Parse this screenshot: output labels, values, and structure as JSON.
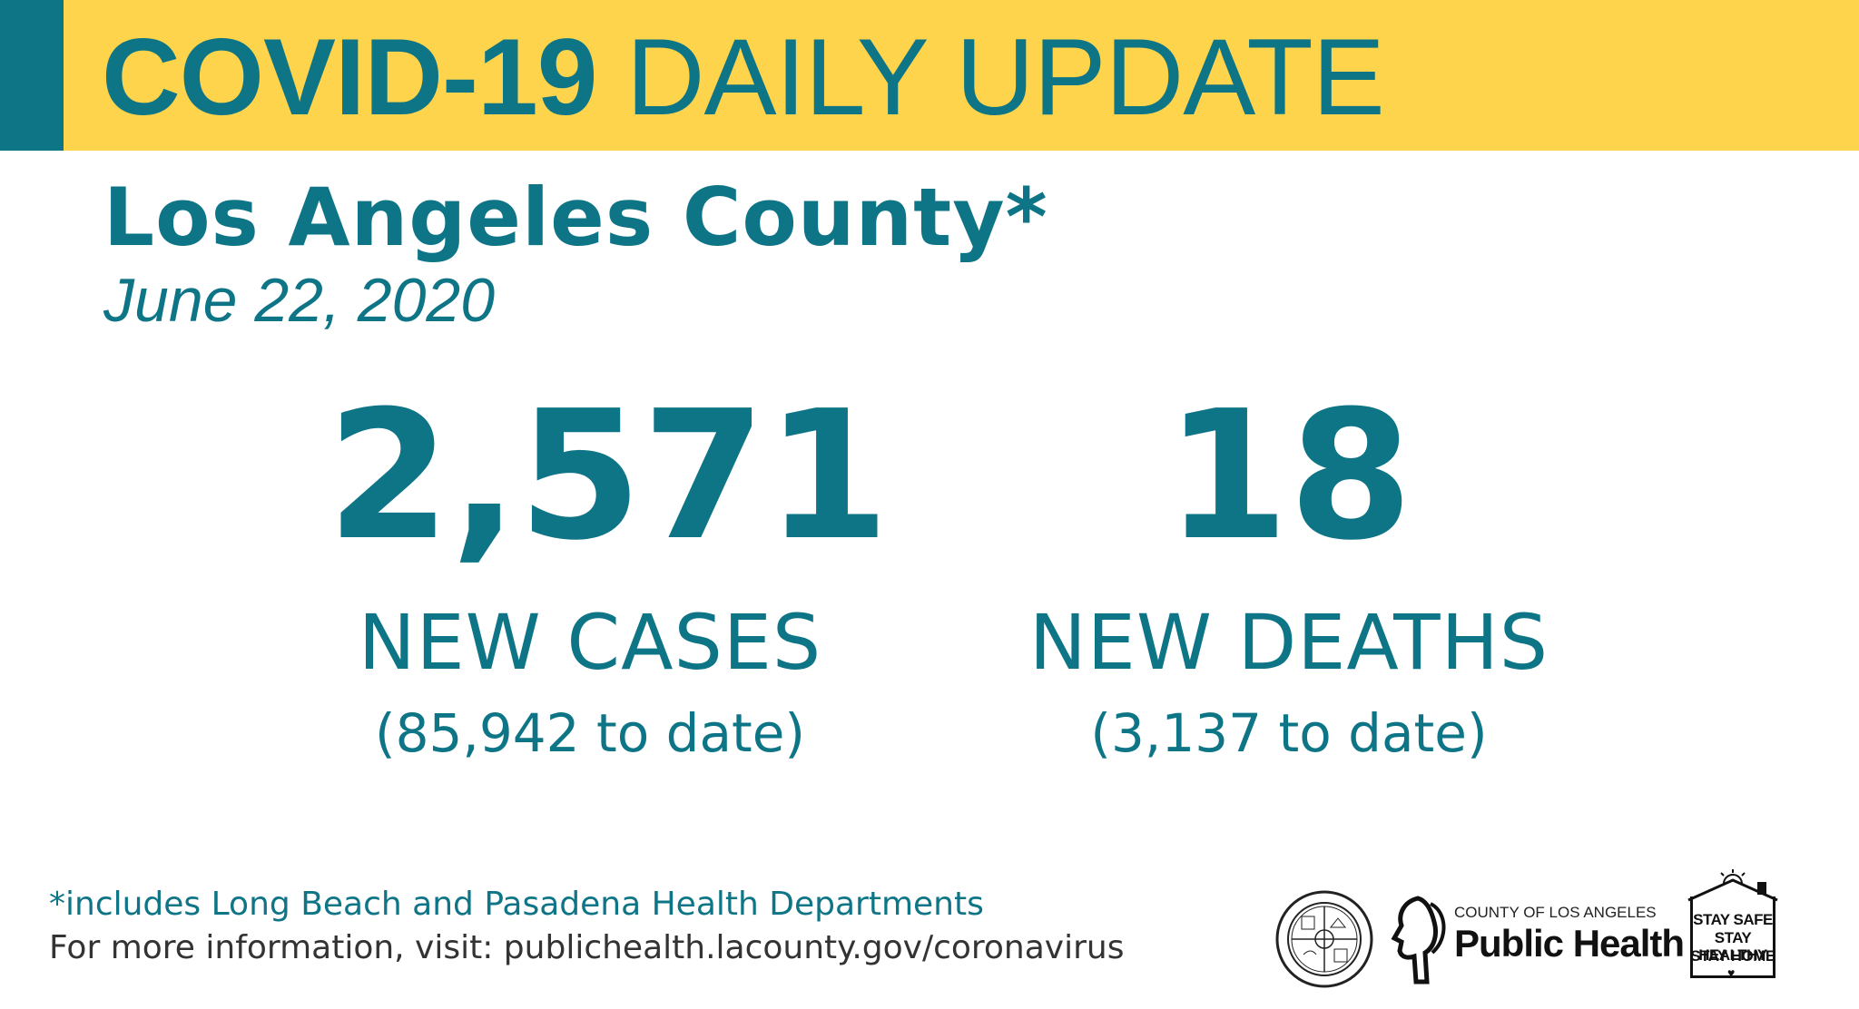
{
  "header": {
    "title_bold": "COVID-19",
    "title_regular": "DAILY UPDATE"
  },
  "region": "Los Angeles County*",
  "date": "June 22, 2020",
  "cases": {
    "new": "2,571",
    "label": "NEW CASES",
    "to_date": "(85,942 to date)"
  },
  "deaths": {
    "new": "18",
    "label": "NEW DEATHS",
    "to_date": "(3,137 to date)"
  },
  "footer": {
    "note": "*includes Long Beach and Pasadena Health Departments",
    "info": "For more information, visit: publichealth.lacounty.gov/coronavirus"
  },
  "logos": {
    "seal": "county-seal",
    "public_health_small": "COUNTY OF LOS ANGELES",
    "public_health_big": "Public Health",
    "stay_lines": [
      "STAY SAFE",
      "STAY HEALTHY",
      "STAY HOME"
    ]
  },
  "colors": {
    "teal": "#0e7587",
    "yellow": "#fdd44c"
  }
}
